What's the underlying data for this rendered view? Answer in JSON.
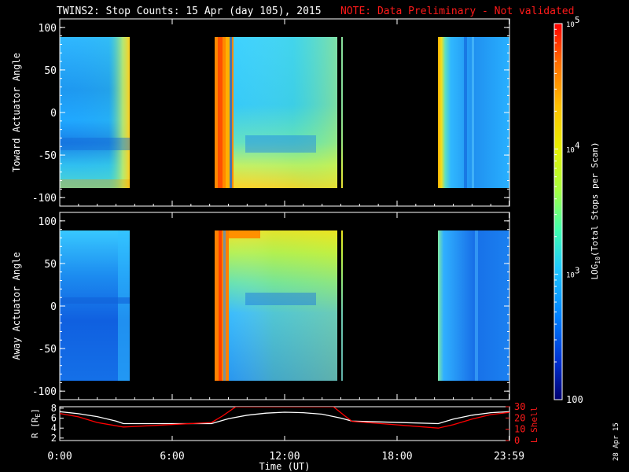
{
  "title": {
    "main": "TWINS2: Stop Counts: 15 Apr (day 105), 2015",
    "note": "NOTE: Data Preliminary - Not validated"
  },
  "footer": {
    "date_stamp": "28 Apr 15"
  },
  "chart_data": [
    {
      "type": "heatmap",
      "name": "toward",
      "ylabel": "Toward Actuator Angle",
      "ylim": [
        -110,
        110
      ],
      "y_ticks": [
        "100",
        "50",
        "0",
        "-50",
        "-100"
      ],
      "y_tick_values": [
        100,
        50,
        0,
        -50,
        -100
      ],
      "data_y_range": [
        -88,
        90
      ],
      "xlim": [
        0,
        24
      ],
      "data_gaps_hours": [
        [
          3.4,
          8.1
        ],
        [
          15.6,
          20.2
        ]
      ],
      "notes": "color = LOG10(Total Stops per Scan)"
    },
    {
      "type": "heatmap",
      "name": "away",
      "ylabel": "Away Actuator Angle",
      "ylim": [
        -110,
        110
      ],
      "y_ticks": [
        "100",
        "50",
        "0",
        "-50",
        "-100"
      ],
      "y_tick_values": [
        100,
        50,
        0,
        -50,
        -100
      ],
      "data_y_range": [
        -88,
        90
      ],
      "xlim": [
        0,
        24
      ],
      "data_gaps_hours": [
        [
          3.4,
          8.1
        ],
        [
          15.6,
          20.2
        ]
      ]
    },
    {
      "type": "line",
      "name": "orbit",
      "xlabel": "Time (UT)",
      "x_ticks": [
        "0:00",
        "6:00",
        "12:00",
        "18:00",
        "23:59"
      ],
      "x_tick_values": [
        0,
        6,
        12,
        18,
        23.98
      ],
      "xlim": [
        0,
        24
      ],
      "left_axis": {
        "label": "R [RE]",
        "label_main": "R [R",
        "label_sub": "E",
        "label_end": "]",
        "ylim": [
          1.5,
          8.3
        ],
        "ticks": [
          "8",
          "6",
          "4",
          "2"
        ],
        "tick_values": [
          8,
          6,
          4,
          2
        ]
      },
      "right_axis": {
        "label": "L Shell",
        "ylim": [
          0,
          30
        ],
        "ticks": [
          "30",
          "20",
          "10",
          "0"
        ],
        "tick_values": [
          30,
          20,
          10,
          0
        ]
      },
      "series": [
        {
          "name": "R [RE]",
          "color": "#ffffff",
          "axis": "left",
          "x": [
            0,
            1,
            2,
            3,
            3.4,
            8.1,
            9,
            10,
            11,
            12,
            13,
            14,
            15,
            15.6,
            20.2,
            21,
            22,
            23,
            24
          ],
          "y": [
            7.3,
            6.9,
            6.3,
            5.4,
            4.9,
            4.9,
            5.9,
            6.6,
            7.0,
            7.2,
            7.1,
            6.8,
            6.0,
            5.4,
            4.9,
            5.8,
            6.6,
            7.1,
            7.3
          ]
        },
        {
          "name": "L Shell",
          "color": "#ff0000",
          "axis": "right",
          "x": [
            0,
            1,
            2,
            3.4,
            8.1,
            8.7,
            9.4,
            14.6,
            15.2,
            15.6,
            20.2,
            21,
            22,
            23,
            24
          ],
          "y": [
            24,
            21,
            16,
            12,
            16,
            22,
            30,
            30,
            22,
            17,
            11,
            14,
            19,
            23,
            25
          ]
        }
      ]
    }
  ],
  "colorbar": {
    "label": "LOG10(Total Stops per Scan)",
    "label_prefix": "LOG",
    "label_sub": "10",
    "label_suffix": "(Total Stops per Scan)",
    "scale": "log",
    "range": [
      100,
      100000
    ],
    "tick_labels": [
      {
        "base": "10",
        "exp": "5",
        "value": 100000
      },
      {
        "base": "10",
        "exp": "4",
        "value": 10000
      },
      {
        "base": "10",
        "exp": "3",
        "value": 1000
      },
      {
        "base": "100",
        "exp": "",
        "value": 100
      }
    ],
    "colors": [
      "#ff0000",
      "#ff6a00",
      "#ffc000",
      "#e8f000",
      "#a8ff40",
      "#40ffb0",
      "#20c8ff",
      "#0080ff",
      "#0030d0",
      "#000070"
    ]
  }
}
